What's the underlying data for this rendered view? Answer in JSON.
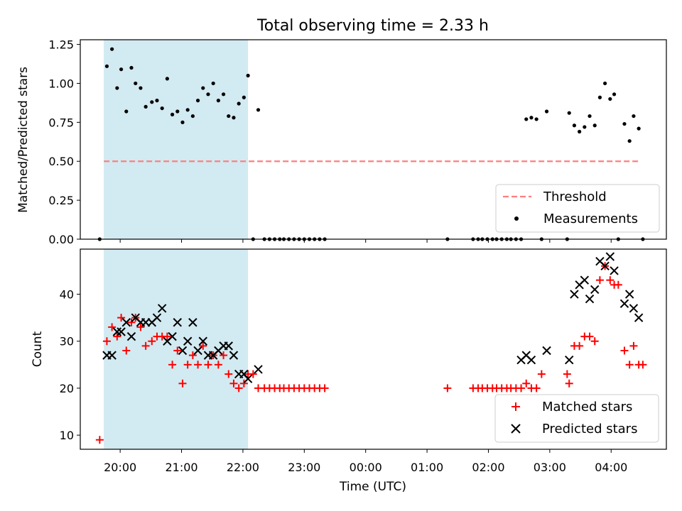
{
  "figure": {
    "title": "Total observing time = 2.33 h",
    "xlabel": "Time (UTC)"
  },
  "colors": {
    "highlight": "#add8e6",
    "threshold": "#ff7f7f",
    "matched": "#ff0000",
    "predicted": "#000000",
    "measurement": "#000000"
  },
  "chart_data": [
    {
      "type": "scatter",
      "ylabel": "Matched/Predicted stars",
      "xlim": [
        19.35,
        4.9
      ],
      "ylim": [
        0,
        1.28
      ],
      "yticks": [
        "0.00",
        "0.25",
        "0.50",
        "0.75",
        "1.00",
        "1.25"
      ],
      "ytick_values": [
        0,
        0.25,
        0.5,
        0.75,
        1.0,
        1.25
      ],
      "highlight_span": [
        "19:44",
        "22:05"
      ],
      "threshold": {
        "name": "Threshold",
        "y": 0.5,
        "x": [
          "19:44",
          "04:27"
        ]
      },
      "legend": {
        "position": "lower right",
        "entries": [
          "Threshold",
          "Measurements"
        ]
      },
      "series": [
        {
          "name": "Measurements",
          "points": [
            [
              "19:40",
              0
            ],
            [
              "19:47",
              1.11
            ],
            [
              "19:52",
              1.22
            ],
            [
              "19:57",
              0.97
            ],
            [
              "20:01",
              1.09
            ],
            [
              "20:06",
              0.82
            ],
            [
              "20:11",
              1.1
            ],
            [
              "20:15",
              1.0
            ],
            [
              "20:20",
              0.97
            ],
            [
              "20:25",
              0.85
            ],
            [
              "20:31",
              0.88
            ],
            [
              "20:36",
              0.89
            ],
            [
              "20:41",
              0.84
            ],
            [
              "20:46",
              1.03
            ],
            [
              "20:51",
              0.8
            ],
            [
              "20:56",
              0.82
            ],
            [
              "21:01",
              0.75
            ],
            [
              "21:06",
              0.83
            ],
            [
              "21:11",
              0.79
            ],
            [
              "21:16",
              0.89
            ],
            [
              "21:21",
              0.97
            ],
            [
              "21:26",
              0.93
            ],
            [
              "21:31",
              1.0
            ],
            [
              "21:36",
              0.89
            ],
            [
              "21:41",
              0.93
            ],
            [
              "21:46",
              0.79
            ],
            [
              "21:51",
              0.78
            ],
            [
              "21:56",
              0.87
            ],
            [
              "22:01",
              0.91
            ],
            [
              "22:05",
              1.05
            ],
            [
              "22:10",
              0
            ],
            [
              "22:15",
              0.83
            ],
            [
              "22:21",
              0
            ],
            [
              "22:26",
              0
            ],
            [
              "22:31",
              0
            ],
            [
              "22:36",
              0
            ],
            [
              "22:40",
              0
            ],
            [
              "22:45",
              0
            ],
            [
              "22:50",
              0
            ],
            [
              "22:55",
              0
            ],
            [
              "23:00",
              0
            ],
            [
              "23:05",
              0
            ],
            [
              "23:10",
              0
            ],
            [
              "23:15",
              0
            ],
            [
              "23:20",
              0
            ],
            [
              "01:20",
              0
            ],
            [
              "01:45",
              0
            ],
            [
              "01:50",
              0
            ],
            [
              "01:54",
              0
            ],
            [
              "01:59",
              0
            ],
            [
              "02:04",
              0
            ],
            [
              "02:08",
              0
            ],
            [
              "02:13",
              0
            ],
            [
              "02:18",
              0
            ],
            [
              "02:22",
              0
            ],
            [
              "02:27",
              0
            ],
            [
              "02:32",
              0
            ],
            [
              "02:37",
              0.77
            ],
            [
              "02:42",
              0.78
            ],
            [
              "02:47",
              0.77
            ],
            [
              "02:52",
              0
            ],
            [
              "02:57",
              0.82
            ],
            [
              "03:17",
              0
            ],
            [
              "03:19",
              0.81
            ],
            [
              "03:24",
              0.73
            ],
            [
              "03:29",
              0.69
            ],
            [
              "03:34",
              0.72
            ],
            [
              "03:39",
              0.79
            ],
            [
              "03:44",
              0.73
            ],
            [
              "03:49",
              0.91
            ],
            [
              "03:54",
              1.0
            ],
            [
              "03:59",
              0.9
            ],
            [
              "04:03",
              0.93
            ],
            [
              "04:07",
              0
            ],
            [
              "04:13",
              0.74
            ],
            [
              "04:18",
              0.63
            ],
            [
              "04:22",
              0.79
            ],
            [
              "04:27",
              0.71
            ],
            [
              "04:31",
              0
            ]
          ]
        }
      ]
    },
    {
      "type": "scatter",
      "ylabel": "Count",
      "xlim": [
        19.35,
        4.9
      ],
      "ylim": [
        7,
        49.6
      ],
      "yticks": [
        "10",
        "20",
        "30",
        "40"
      ],
      "ytick_values": [
        10,
        20,
        30,
        40
      ],
      "xticks": [
        "20:00",
        "21:00",
        "22:00",
        "23:00",
        "00:00",
        "01:00",
        "02:00",
        "03:00",
        "04:00"
      ],
      "highlight_span": [
        "19:44",
        "22:05"
      ],
      "legend": {
        "position": "lower right",
        "entries": [
          "Matched stars",
          "Predicted stars"
        ]
      },
      "series": [
        {
          "name": "Matched stars",
          "marker": "plus",
          "points": [
            [
              "19:40",
              9
            ],
            [
              "19:47",
              30
            ],
            [
              "19:52",
              33
            ],
            [
              "19:57",
              31
            ],
            [
              "20:01",
              35
            ],
            [
              "20:06",
              28
            ],
            [
              "20:11",
              34
            ],
            [
              "20:15",
              35
            ],
            [
              "20:20",
              33
            ],
            [
              "20:25",
              29
            ],
            [
              "20:31",
              30
            ],
            [
              "20:36",
              31
            ],
            [
              "20:41",
              31
            ],
            [
              "20:46",
              31
            ],
            [
              "20:51",
              25
            ],
            [
              "20:56",
              28
            ],
            [
              "21:01",
              21
            ],
            [
              "21:06",
              25
            ],
            [
              "21:11",
              27
            ],
            [
              "21:16",
              25
            ],
            [
              "21:21",
              29
            ],
            [
              "21:26",
              25
            ],
            [
              "21:31",
              27
            ],
            [
              "21:36",
              25
            ],
            [
              "21:41",
              27
            ],
            [
              "21:46",
              23
            ],
            [
              "21:51",
              21
            ],
            [
              "21:56",
              20
            ],
            [
              "22:01",
              21
            ],
            [
              "22:05",
              23
            ],
            [
              "22:10",
              23
            ],
            [
              "22:15",
              20
            ],
            [
              "22:21",
              20
            ],
            [
              "22:26",
              20
            ],
            [
              "22:31",
              20
            ],
            [
              "22:36",
              20
            ],
            [
              "22:40",
              20
            ],
            [
              "22:45",
              20
            ],
            [
              "22:50",
              20
            ],
            [
              "22:55",
              20
            ],
            [
              "23:00",
              20
            ],
            [
              "23:05",
              20
            ],
            [
              "23:10",
              20
            ],
            [
              "23:15",
              20
            ],
            [
              "23:20",
              20
            ],
            [
              "01:20",
              20
            ],
            [
              "01:45",
              20
            ],
            [
              "01:50",
              20
            ],
            [
              "01:54",
              20
            ],
            [
              "01:59",
              20
            ],
            [
              "02:04",
              20
            ],
            [
              "02:08",
              20
            ],
            [
              "02:13",
              20
            ],
            [
              "02:18",
              20
            ],
            [
              "02:22",
              20
            ],
            [
              "02:27",
              20
            ],
            [
              "02:32",
              20
            ],
            [
              "02:37",
              21
            ],
            [
              "02:42",
              20
            ],
            [
              "02:47",
              20
            ],
            [
              "02:52",
              23
            ],
            [
              "03:17",
              23
            ],
            [
              "03:19",
              21
            ],
            [
              "03:24",
              29
            ],
            [
              "03:29",
              29
            ],
            [
              "03:34",
              31
            ],
            [
              "03:39",
              31
            ],
            [
              "03:44",
              30
            ],
            [
              "03:49",
              43
            ],
            [
              "03:54",
              46
            ],
            [
              "03:59",
              43
            ],
            [
              "04:03",
              42
            ],
            [
              "04:07",
              42
            ],
            [
              "04:13",
              28
            ],
            [
              "04:18",
              25
            ],
            [
              "04:22",
              29
            ],
            [
              "04:27",
              25
            ],
            [
              "04:31",
              25
            ]
          ]
        },
        {
          "name": "Predicted stars",
          "marker": "x",
          "points": [
            [
              "19:47",
              27
            ],
            [
              "19:52",
              27
            ],
            [
              "19:57",
              32
            ],
            [
              "20:01",
              32
            ],
            [
              "20:06",
              34
            ],
            [
              "20:11",
              31
            ],
            [
              "20:15",
              35
            ],
            [
              "20:20",
              34
            ],
            [
              "20:25",
              34
            ],
            [
              "20:31",
              34
            ],
            [
              "20:36",
              35
            ],
            [
              "20:41",
              37
            ],
            [
              "20:46",
              30
            ],
            [
              "20:51",
              31
            ],
            [
              "20:56",
              34
            ],
            [
              "21:01",
              28
            ],
            [
              "21:06",
              30
            ],
            [
              "21:11",
              34
            ],
            [
              "21:16",
              28
            ],
            [
              "21:21",
              30
            ],
            [
              "21:26",
              27
            ],
            [
              "21:31",
              27
            ],
            [
              "21:36",
              28
            ],
            [
              "21:41",
              29
            ],
            [
              "21:46",
              29
            ],
            [
              "21:51",
              27
            ],
            [
              "21:56",
              23
            ],
            [
              "22:01",
              23
            ],
            [
              "22:05",
              22
            ],
            [
              "22:15",
              24
            ],
            [
              "02:32",
              26
            ],
            [
              "02:37",
              27
            ],
            [
              "02:42",
              26
            ],
            [
              "02:57",
              28
            ],
            [
              "03:19",
              26
            ],
            [
              "03:24",
              40
            ],
            [
              "03:29",
              42
            ],
            [
              "03:34",
              43
            ],
            [
              "03:39",
              39
            ],
            [
              "03:44",
              41
            ],
            [
              "03:49",
              47
            ],
            [
              "03:54",
              46
            ],
            [
              "03:59",
              48
            ],
            [
              "04:03",
              45
            ],
            [
              "04:13",
              38
            ],
            [
              "04:18",
              40
            ],
            [
              "04:22",
              37
            ],
            [
              "04:27",
              35
            ]
          ]
        }
      ]
    }
  ]
}
